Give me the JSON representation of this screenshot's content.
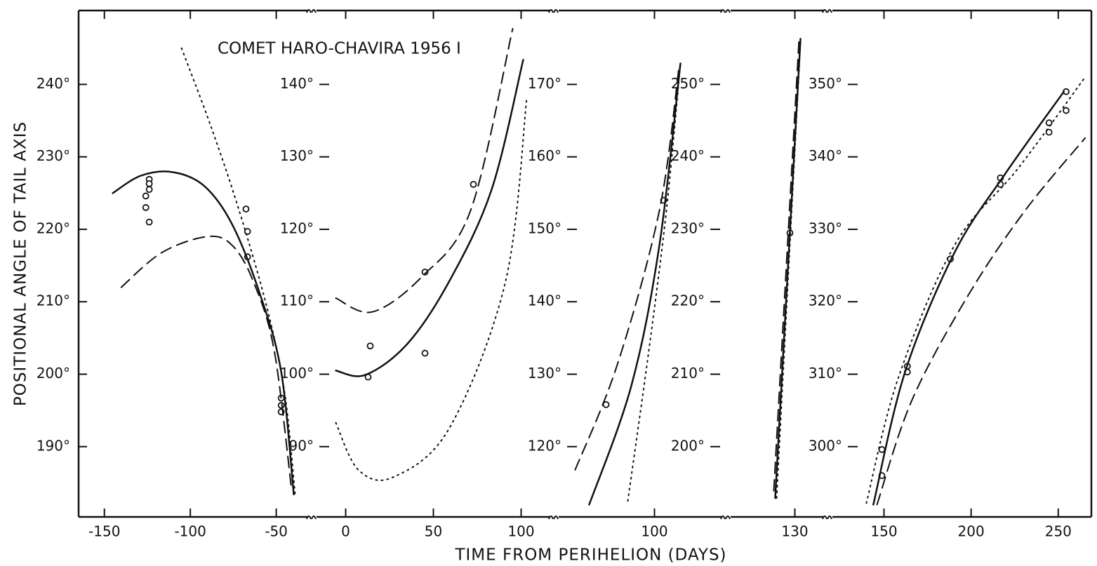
{
  "figure": {
    "title": "COMET HARO-CHAVIRA 1956 I",
    "xlabel": "TIME FROM PERIHELION (DAYS)",
    "ylabel": "POSITIONAL ANGLE OF TAIL AXIS"
  },
  "chart_data": [
    {
      "type": "line",
      "xlim": [
        -165,
        -29
      ],
      "ylim": [
        180.3,
        250.2
      ],
      "xticks": [
        -150,
        -100,
        -50
      ],
      "yticks": [
        {
          "value": 190,
          "label": "190°"
        },
        {
          "value": 200,
          "label": "200°"
        },
        {
          "value": 210,
          "label": "210°"
        },
        {
          "value": 220,
          "label": "220°"
        },
        {
          "value": 230,
          "label": "230°"
        },
        {
          "value": 240,
          "label": "240°"
        }
      ],
      "series": [
        {
          "style": "points",
          "color": "#111",
          "x": [
            -123.9,
            -123.9,
            -123.9,
            -125.9,
            -125.9,
            -123.9,
            -67.6,
            -66.7,
            -66.7,
            -47.1,
            -47.1,
            -47.1
          ],
          "values": [
            226.9,
            226.3,
            225.5,
            224.6,
            223,
            221,
            222.8,
            219.7,
            216.2,
            196.7,
            195.7,
            194.8
          ]
        },
        {
          "style": "solid",
          "color": "#111",
          "x": [
            -145.1,
            -128.8,
            -110.4,
            -92.0,
            -75.7,
            -59.4,
            -47.1,
            -39.8
          ],
          "values": [
            225.0,
            227.4,
            227.9,
            226.0,
            220.7,
            211.0,
            200.3,
            183.4
          ]
        },
        {
          "style": "dashed",
          "color": "#111",
          "x": [
            -140.2,
            -116.5,
            -90,
            -75.7,
            -63.5,
            -51.2,
            -41.0
          ],
          "values": [
            212.0,
            216.8,
            219.0,
            217.8,
            212.9,
            203.3,
            183.9
          ]
        },
        {
          "style": "dotted",
          "color": "#111",
          "x": [
            -105.1,
            -88.0,
            -71.6,
            -55.3,
            -45.1,
            -39.0
          ],
          "values": [
            245.0,
            234.2,
            222.6,
            209.1,
            197.4,
            183.4
          ]
        }
      ]
    },
    {
      "type": "line",
      "xlim": [
        -19,
        119
      ],
      "ylim": [
        80.3,
        150.2
      ],
      "xticks": [
        0,
        50,
        100
      ],
      "yticks": [
        {
          "value": 90,
          "label": "90°"
        },
        {
          "value": 100,
          "label": "100°"
        },
        {
          "value": 110,
          "label": "110°"
        },
        {
          "value": 120,
          "label": "120°"
        },
        {
          "value": 130,
          "label": "130°"
        },
        {
          "value": 140,
          "label": "140°"
        }
      ],
      "series": [
        {
          "style": "points",
          "color": "#111",
          "x": [
            14,
            12.8,
            45.2,
            45.2,
            72.8
          ],
          "values": [
            103.9,
            99.6,
            102.9,
            114.1,
            126.2
          ]
        },
        {
          "style": "solid",
          "color": "#111",
          "x": [
            -5.6,
            11.2,
            35.2,
            59.2,
            83.2,
            101.2
          ],
          "values": [
            100.5,
            99.9,
            104.2,
            112.9,
            125.5,
            143.4
          ]
        },
        {
          "style": "dashed",
          "color": "#111",
          "x": [
            -5.6,
            15.2,
            43.2,
            71.2,
            95.2
          ],
          "values": [
            110.5,
            108.6,
            113.4,
            122.6,
            147.7
          ]
        },
        {
          "style": "dotted",
          "color": "#111",
          "x": [
            -5.6,
            7.2,
            27.2,
            59.2,
            91.2,
            103.2
          ],
          "values": [
            93.3,
            86.8,
            85.8,
            92.6,
            112.9,
            138.1
          ]
        }
      ]
    },
    {
      "type": "line",
      "xlim": [
        43,
        141
      ],
      "ylim": [
        110.3,
        180.2
      ],
      "xticks": [
        100
      ],
      "yticks": [
        {
          "value": 120,
          "label": "120°"
        },
        {
          "value": 130,
          "label": "130°"
        },
        {
          "value": 140,
          "label": "140°"
        },
        {
          "value": 150,
          "label": "150°"
        },
        {
          "value": 160,
          "label": "160°"
        },
        {
          "value": 170,
          "label": "170°"
        }
      ],
      "series": [
        {
          "style": "points",
          "color": "#111",
          "x": [
            72.4,
            105.2
          ],
          "values": [
            125.8,
            154.0
          ]
        },
        {
          "style": "solid",
          "color": "#111",
          "x": [
            62.8,
            86.8,
            102.8,
            114.8
          ],
          "values": [
            112.0,
            128.4,
            147.8,
            172.9
          ]
        },
        {
          "style": "dashed",
          "color": "#111",
          "x": [
            54.8,
            78.8,
            102.8,
            114
          ],
          "values": [
            116.8,
            131.3,
            152.6,
            172.4
          ]
        },
        {
          "style": "dotted",
          "color": "#111",
          "x": [
            84.8,
            96.8,
            106.8,
            114.8
          ],
          "values": [
            112.5,
            133.3,
            152.6,
            172.9
          ]
        }
      ]
    },
    {
      "type": "line",
      "xlim": [
        91,
        149
      ],
      "ylim": [
        190.3,
        260.2
      ],
      "xticks": [
        130
      ],
      "yticks": [
        {
          "value": 200,
          "label": "200°"
        },
        {
          "value": 210,
          "label": "210°"
        },
        {
          "value": 220,
          "label": "220°"
        },
        {
          "value": 230,
          "label": "230°"
        },
        {
          "value": 240,
          "label": "240°"
        },
        {
          "value": 250,
          "label": "250°"
        }
      ],
      "series": [
        {
          "style": "points",
          "color": "#111",
          "x": [
            127.2
          ],
          "values": [
            229.5
          ]
        },
        {
          "style": "solid",
          "color": "#111",
          "x": [
            118.8,
            127.2,
            133.2
          ],
          "values": [
            192.9,
            229.7,
            256.3
          ]
        },
        {
          "style": "dashed",
          "color": "#111",
          "x": [
            118,
            132.4
          ],
          "values": [
            193.9,
            256.3
          ]
        },
        {
          "style": "dotted",
          "color": "#111",
          "x": [
            119.6,
            133.2
          ],
          "values": [
            192.9,
            255.8
          ]
        }
      ]
    },
    {
      "type": "line",
      "xlim": [
        118,
        269
      ],
      "ylim": [
        290.3,
        360.2
      ],
      "xticks": [
        150,
        200,
        250
      ],
      "yticks": [
        {
          "value": 300,
          "label": "300°"
        },
        {
          "value": 310,
          "label": "310°"
        },
        {
          "value": 320,
          "label": "320°"
        },
        {
          "value": 330,
          "label": "330°"
        },
        {
          "value": 340,
          "label": "340°"
        },
        {
          "value": 350,
          "label": "350°"
        }
      ],
      "series": [
        {
          "style": "points",
          "color": "#111",
          "x": [
            148.8,
            148.8,
            163.4,
            163.4,
            188.1,
            216.8,
            216.8,
            244.7,
            244.7,
            254.5,
            254.5
          ],
          "values": [
            299.6,
            296.0,
            311.1,
            310.3,
            325.9,
            337.1,
            336.2,
            344.7,
            343.4,
            349.0,
            346.4
          ]
        },
        {
          "style": "solid",
          "color": "#111",
          "x": [
            143.9,
            162.1,
            190.5,
            218.8,
            253.2
          ],
          "values": [
            292.0,
            310.3,
            326.8,
            337.4,
            349.0
          ]
        },
        {
          "style": "dashed",
          "color": "#111",
          "x": [
            146.0,
            166.2,
            198.6,
            231.0,
            265.4
          ],
          "values": [
            292.0,
            306.5,
            321.0,
            332.6,
            342.6
          ]
        },
        {
          "style": "dotted",
          "color": "#111",
          "x": [
            139.9,
            158.1,
            190.5,
            226.9,
            265.4
          ],
          "values": [
            292.2,
            309.4,
            327.8,
            338.4,
            351.0
          ]
        }
      ]
    }
  ]
}
